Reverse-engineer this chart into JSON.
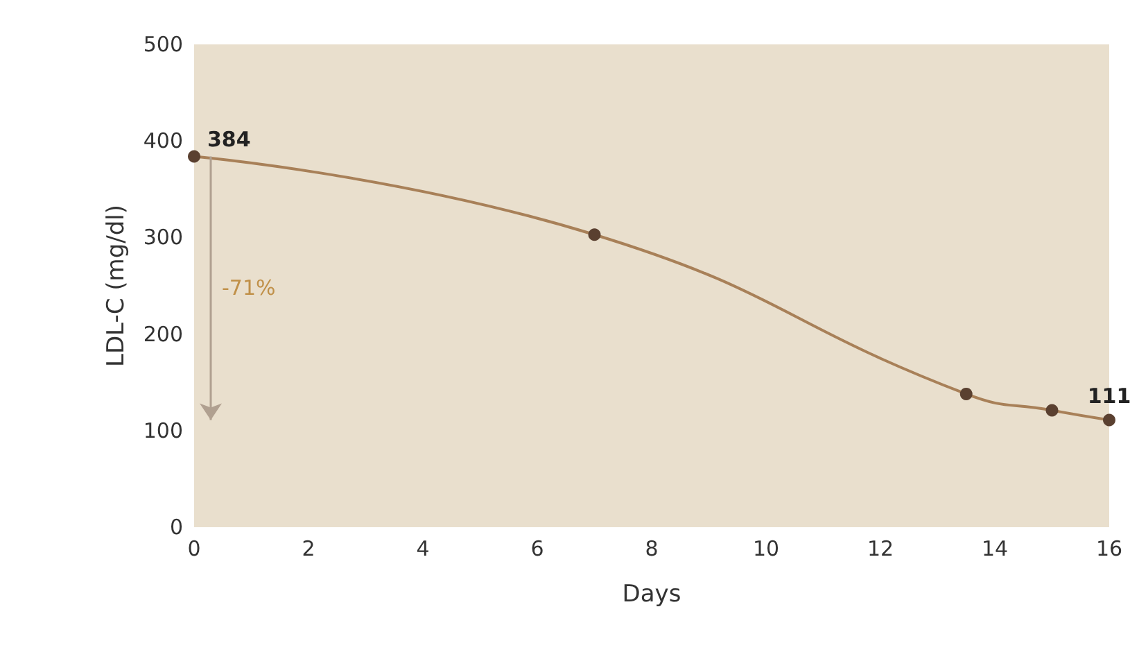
{
  "chart_data": {
    "type": "line",
    "xlabel": "Days",
    "ylabel": "LDL-C (mg/dl)",
    "x": [
      0,
      7,
      13.5,
      15,
      16
    ],
    "series": [
      {
        "color": "#a88058",
        "values": [
          384,
          303,
          138,
          121,
          111
        ],
        "value_labels": [
          "384",
          null,
          null,
          null,
          "111"
        ]
      }
    ],
    "xlim": [
      0,
      16
    ],
    "xticks": [
      0,
      2,
      4,
      6,
      8,
      10,
      12,
      14,
      16
    ],
    "ylim": [
      0,
      500
    ],
    "yticks": [
      0,
      100,
      200,
      300,
      400,
      500
    ],
    "annotations": [
      "-71%"
    ],
    "marker": "circle",
    "grid": false
  }
}
